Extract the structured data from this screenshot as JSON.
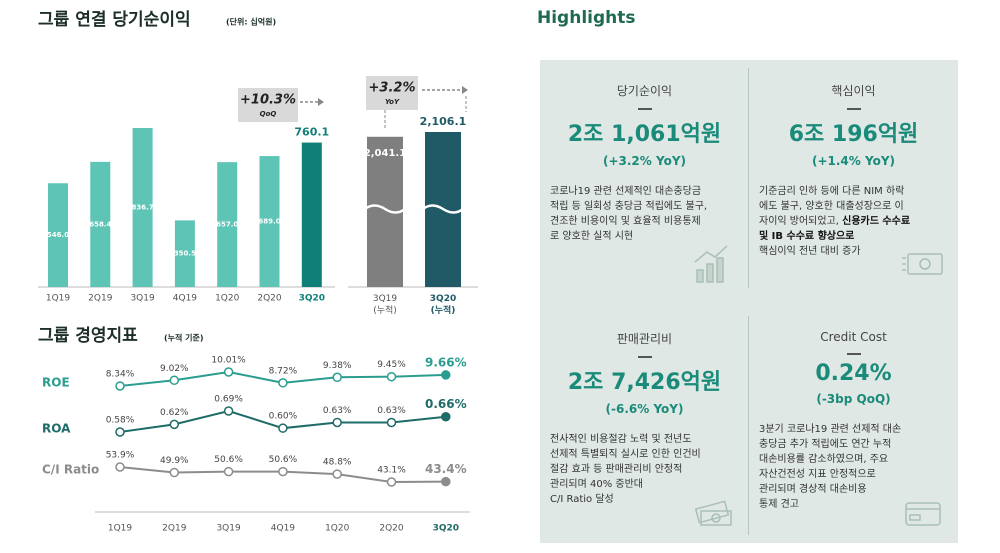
{
  "chart_data": [
    {
      "type": "bar",
      "title": "그룹 연결 당기순이익",
      "subtitle": "(단위: 십억원)",
      "categories": [
        "1Q19",
        "2Q19",
        "3Q19",
        "4Q19",
        "1Q20",
        "2Q20",
        "3Q20"
      ],
      "values": [
        546.0,
        658.4,
        836.7,
        350.5,
        657.0,
        689.0,
        760.1
      ],
      "value_labels": [
        "546.0",
        "658.4",
        "836.7",
        "350.5",
        "657.0",
        "689.0",
        "760.1"
      ],
      "colors": [
        "#5ec4b6",
        "#5ec4b6",
        "#5ec4b6",
        "#5ec4b6",
        "#5ec4b6",
        "#5ec4b6",
        "#0f7f78"
      ],
      "annotation": {
        "text": "+10.3%",
        "label": "QoQ"
      }
    },
    {
      "type": "bar",
      "categories": [
        "3Q19\n(누적)",
        "3Q20\n(누적)"
      ],
      "values": [
        2041.1,
        2106.1
      ],
      "value_labels": [
        "2,041.1",
        "2,106.1"
      ],
      "colors": [
        "#7f7f7f",
        "#1f5a66"
      ],
      "axis_break": true,
      "annotation": {
        "text": "+3.2%",
        "label": "YoY"
      }
    },
    {
      "type": "line",
      "title": "그룹 경영지표",
      "subtitle": "(누적 기준)",
      "categories": [
        "1Q19",
        "2Q19",
        "3Q19",
        "4Q19",
        "1Q20",
        "2Q20",
        "3Q20"
      ],
      "series": [
        {
          "name": "ROE",
          "color": "#2a9d8f",
          "values": [
            8.34,
            9.02,
            10.01,
            8.72,
            9.38,
            9.45,
            9.66
          ],
          "value_labels": [
            "8.34%",
            "9.02%",
            "10.01%",
            "8.72%",
            "9.38%",
            "9.45%",
            "9.66%"
          ]
        },
        {
          "name": "ROA",
          "color": "#1e6b68",
          "values": [
            0.58,
            0.62,
            0.69,
            0.6,
            0.63,
            0.63,
            0.66
          ],
          "value_labels": [
            "0.58%",
            "0.62%",
            "0.69%",
            "0.60%",
            "0.63%",
            "0.63%",
            "0.66%"
          ]
        },
        {
          "name": "C/I Ratio",
          "color": "#8c8c8c",
          "values": [
            53.9,
            49.9,
            50.6,
            50.6,
            48.8,
            43.1,
            43.4
          ],
          "value_labels": [
            "53.9%",
            "49.9%",
            "50.6%",
            "50.6%",
            "48.8%",
            "43.1%",
            "43.4%"
          ]
        }
      ]
    }
  ],
  "highlights": {
    "title": "Highlights",
    "boxes": [
      {
        "title": "당기순이익",
        "value": "2조 1,061억원",
        "change": "(+3.2% YoY)",
        "lines": [
          [
            "코로나19 관련 선제적인 대손충당금"
          ],
          [
            "적립 등 일회성 충당금 적립에도 불구,"
          ],
          [
            "견조한 비용이익 및 효율적 비용통제"
          ],
          [
            "로 양호한 실적 시현"
          ]
        ]
      },
      {
        "title": "핵심이익",
        "value": "6조 196억원",
        "change": "(+1.4% YoY)",
        "lines": [
          [
            "기준금리 인하 등에 다른 NIM 하락"
          ],
          [
            "에도 불구, 양호한 대출성장으로 이"
          ],
          [
            "자이익 방어되었고, ",
            "신용카드 수수료"
          ],
          [
            "",
            "및 IB 수수료 향상으로"
          ],
          [
            "핵심이익 전년 대비 증가"
          ]
        ]
      },
      {
        "title": "판매관리비",
        "value": "2조 7,426억원",
        "change": "(-6.6% YoY)",
        "lines": [
          [
            "전사적인 비용절감 노력 및 전년도"
          ],
          [
            "선제적 특별퇴직 실시로 인한 인건비"
          ],
          [
            "절감 효과 등 판매관리비 안정적"
          ],
          [
            "관리되며 40% 중반대"
          ],
          [
            "C/I Ratio 달성"
          ]
        ]
      },
      {
        "title": "Credit Cost",
        "value": "0.24%",
        "change": "(-3bp QoQ)",
        "lines": [
          [
            "3분기 코로나19 관련 선제적 대손"
          ],
          [
            "충당금 추가 적립에도 연간 누적"
          ],
          [
            "대손비용률 감소하였으며, 주요"
          ],
          [
            "자산건전성 지표 안정적으로"
          ],
          [
            "관리되며 경상적 대손비용"
          ],
          [
            "통제 견고"
          ]
        ]
      }
    ]
  }
}
